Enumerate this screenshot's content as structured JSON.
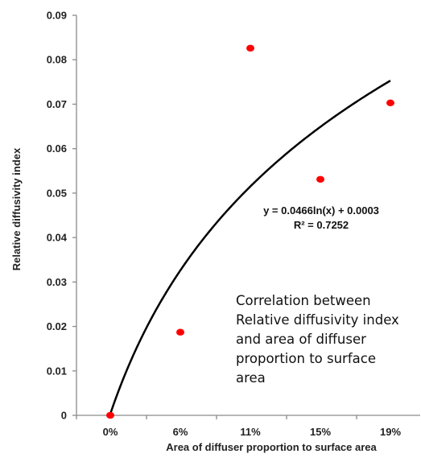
{
  "chart_data": {
    "type": "scatter",
    "xlabel": "Area of diffuser proportion to surface area",
    "ylabel": "Relative diffusivity index",
    "categories": [
      "0%",
      "6%",
      "11%",
      "15%",
      "19%"
    ],
    "yticks": [
      "0",
      "0.01",
      "0.02",
      "0.03",
      "0.04",
      "0.05",
      "0.06",
      "0.07",
      "0.08",
      "0.09"
    ],
    "ylim": [
      0,
      0.09
    ],
    "points": [
      {
        "x": 1.0,
        "y": 0.0
      },
      {
        "x": 2.0,
        "y": 0.0187
      },
      {
        "x": 3.0,
        "y": 0.0826
      },
      {
        "x": 4.0,
        "y": 0.0531
      },
      {
        "x": 5.0,
        "y": 0.0703
      }
    ],
    "trendline": {
      "type": "logarithmic",
      "a": 0.0466,
      "b": 0.0003,
      "equation": "y = 0.0466ln(x) + 0.0003",
      "r2": "R² = 0.7252"
    },
    "point_color": "#ff0000",
    "line_color": "#000000",
    "grid": false,
    "annotation": [
      "Correlation between",
      "Relative diffusivity index",
      "and area of diffuser",
      "proportion to surface",
      "area"
    ]
  }
}
